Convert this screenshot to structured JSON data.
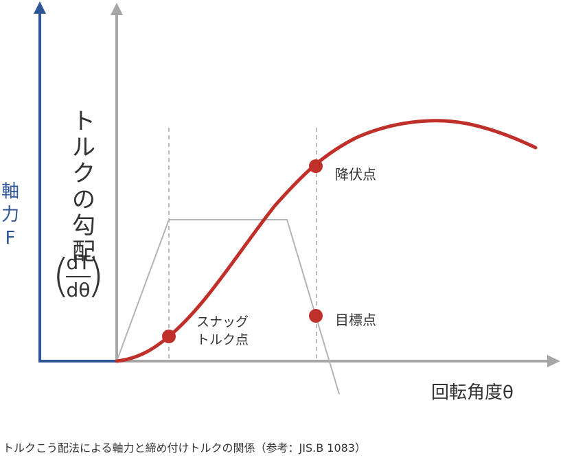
{
  "axis_f_label": {
    "line1": "軸",
    "line2": "力",
    "line3": "F"
  },
  "gradient_title": {
    "chars": [
      "ト",
      "ル",
      "ク",
      "の",
      "勾",
      "配"
    ]
  },
  "gradient_fraction": {
    "numerator": "dT",
    "denominator": "dθ"
  },
  "points": {
    "yield": "降伏点",
    "target": "目標点",
    "snug_line1": "スナッグ",
    "snug_line2": "トルク点"
  },
  "x_axis_label": "回転角度θ",
  "caption": "トルクこう配法による軸力と締め付けトルクの関係（参考：JIS.B 1083）",
  "colors": {
    "axial_axis": "#2f5597",
    "torque_axis": "#a6a6a6",
    "curve": "#c0302b",
    "gradient_line": "#b3b3b3",
    "guide": "#a6a6a6"
  }
}
